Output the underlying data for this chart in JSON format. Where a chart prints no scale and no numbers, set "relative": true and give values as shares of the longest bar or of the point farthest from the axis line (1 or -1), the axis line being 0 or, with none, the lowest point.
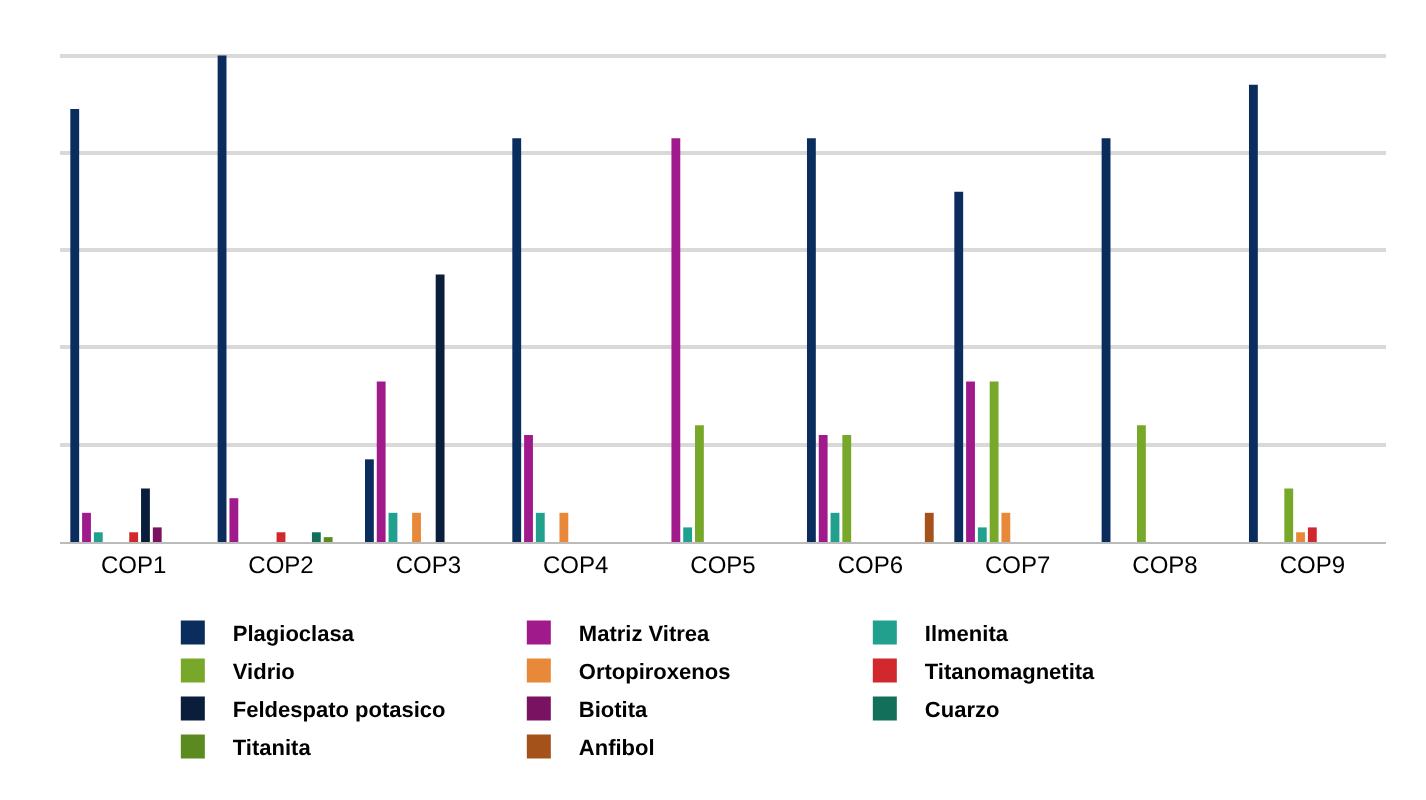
{
  "chart_data": {
    "type": "bar",
    "relative": true,
    "grid": "y",
    "legend": "bottom",
    "categories": [
      "COP1",
      "COP2",
      "COP3",
      "COP4",
      "COP5",
      "COP6",
      "COP7",
      "COP8",
      "COP9"
    ],
    "series": [
      {
        "name": "Plagioclasa",
        "color": "#0b2d5e",
        "values": [
          0.89,
          1,
          0.17,
          0.83,
          null,
          0.83,
          0.72,
          0.83,
          0.94
        ]
      },
      {
        "name": "Matriz Vitrea",
        "color": "#a01a8c",
        "values": [
          0.06,
          0.09,
          0.33,
          0.22,
          0.83,
          0.22,
          0.33,
          null,
          null
        ]
      },
      {
        "name": "Ilmenita",
        "color": "#22a08e",
        "values": [
          0.02,
          null,
          0.06,
          0.06,
          0.03,
          0.06,
          0.03,
          null,
          null
        ]
      },
      {
        "name": "Vidrio",
        "color": "#78a82a",
        "values": [
          null,
          null,
          null,
          null,
          0.24,
          0.22,
          0.33,
          0.24,
          0.11
        ]
      },
      {
        "name": "Ortopiroxenos",
        "color": "#e8893a",
        "values": [
          null,
          null,
          0.06,
          0.06,
          null,
          null,
          0.06,
          null,
          0.02
        ]
      },
      {
        "name": "Titanomagnetita",
        "color": "#d0282c",
        "values": [
          0.02,
          0.02,
          null,
          null,
          null,
          null,
          null,
          null,
          0.03
        ]
      },
      {
        "name": "Feldespato potasico",
        "color": "#0a1d3a",
        "values": [
          0.11,
          null,
          0.55,
          null,
          null,
          null,
          null,
          null,
          null
        ]
      },
      {
        "name": "Biotita",
        "color": "#7a1262",
        "values": [
          0.03,
          null,
          null,
          null,
          null,
          null,
          null,
          null,
          null
        ]
      },
      {
        "name": "Cuarzo",
        "color": "#12705a",
        "values": [
          null,
          0.02,
          null,
          null,
          null,
          null,
          null,
          null,
          null
        ]
      },
      {
        "name": "Titanita",
        "color": "#5a8a20",
        "values": [
          null,
          0.01,
          null,
          null,
          null,
          null,
          null,
          null,
          null
        ]
      },
      {
        "name": "Anfibol",
        "color": "#a5521a",
        "values": [
          null,
          null,
          null,
          null,
          null,
          0.06,
          null,
          null,
          null
        ]
      }
    ]
  }
}
